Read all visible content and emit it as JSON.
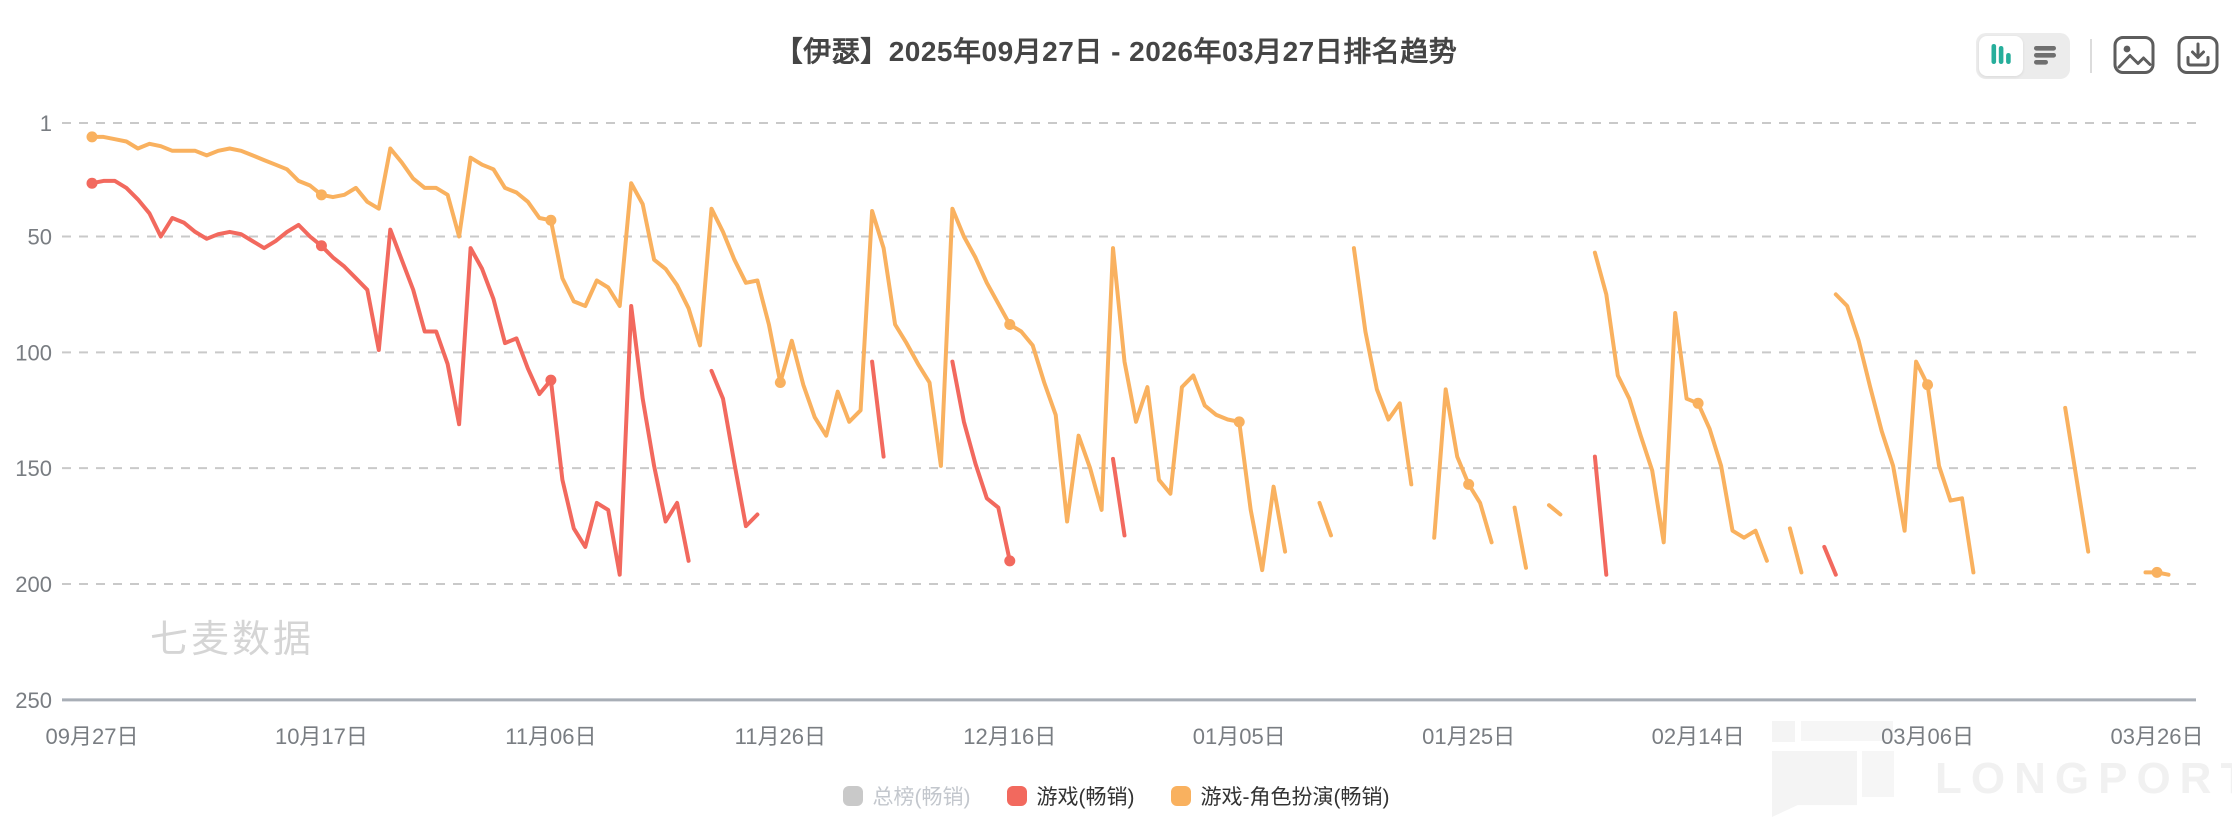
{
  "title": "【伊瑟】2025年09月27日 - 2026年03月27日排名趋势",
  "toolbar": {
    "toggle": {
      "active_view": "chart",
      "chart_icon_color": "#26ae9b",
      "list_icon_color": "#6f6f6f"
    },
    "buttons": [
      "export-image",
      "download"
    ]
  },
  "legend": {
    "items": [
      {
        "label": "总榜(畅销)",
        "color": "#c9c9c9",
        "text_color": "#c3c7cd",
        "active": false
      },
      {
        "label": "游戏(畅销)",
        "color": "#f2695e",
        "text_color": "#333333",
        "active": true
      },
      {
        "label": "游戏-角色扮演(畅销)",
        "color": "#f9b15f",
        "text_color": "#333333",
        "active": true
      }
    ]
  },
  "watermarks": {
    "qimai": "七麦数据",
    "longport": "LONGPORT"
  },
  "chart_data": {
    "type": "line",
    "title": "【伊瑟】2025年09月27日 - 2026年03月27日排名趋势",
    "y_axis": {
      "ticks": [
        1,
        50,
        100,
        150,
        200,
        250
      ],
      "inverted": true,
      "range": [
        1,
        250
      ],
      "grid": "dashed"
    },
    "x_axis": {
      "unit": "days since 2025-09-27",
      "range_days": [
        0,
        181
      ],
      "tick_days": [
        0,
        20,
        40,
        60,
        80,
        100,
        120,
        140,
        160,
        180
      ],
      "tick_labels": [
        "09月27日",
        "10月17日",
        "11月06日",
        "11月26日",
        "12月16日",
        "01月05日",
        "01月25日",
        "02月14日",
        "03月06日",
        "03月26日"
      ]
    },
    "legend_position": "bottom",
    "marker_every_days": 20,
    "series": [
      {
        "name": "总榜(畅销)",
        "color": "#c9c9c9",
        "visible": false,
        "points": []
      },
      {
        "name": "游戏(畅销)",
        "color": "#f2695e",
        "visible": true,
        "points": [
          [
            0,
            27
          ],
          [
            1,
            26
          ],
          [
            2,
            26
          ],
          [
            3,
            29
          ],
          [
            4,
            34
          ],
          [
            5,
            40
          ],
          [
            6,
            50
          ],
          [
            7,
            42
          ],
          [
            8,
            44
          ],
          [
            9,
            48
          ],
          [
            10,
            51
          ],
          [
            11,
            49
          ],
          [
            12,
            48
          ],
          [
            13,
            49
          ],
          [
            14,
            52
          ],
          [
            15,
            55
          ],
          [
            16,
            52
          ],
          [
            17,
            48
          ],
          [
            18,
            45
          ],
          [
            19,
            50
          ],
          [
            20,
            54
          ],
          [
            21,
            59
          ],
          [
            22,
            63
          ],
          [
            23,
            68
          ],
          [
            24,
            73
          ],
          [
            25,
            99
          ],
          [
            26,
            47
          ],
          [
            27,
            60
          ],
          [
            28,
            73
          ],
          [
            29,
            91
          ],
          [
            30,
            91
          ],
          [
            31,
            105
          ],
          [
            32,
            131
          ],
          [
            33,
            55
          ],
          [
            34,
            64
          ],
          [
            35,
            77
          ],
          [
            36,
            96
          ],
          [
            37,
            94
          ],
          [
            38,
            107
          ],
          [
            39,
            118
          ],
          [
            40,
            112
          ],
          [
            41,
            155
          ],
          [
            42,
            176
          ],
          [
            43,
            184
          ],
          [
            44,
            165
          ],
          [
            45,
            168
          ],
          [
            46,
            196
          ],
          [
            47,
            80
          ],
          [
            48,
            120
          ],
          [
            49,
            149
          ],
          [
            50,
            173
          ],
          [
            51,
            165
          ],
          [
            52,
            190
          ],
          null,
          [
            54,
            108
          ],
          [
            55,
            120
          ],
          [
            56,
            148
          ],
          [
            57,
            175
          ],
          [
            58,
            170
          ],
          null,
          [
            68,
            104
          ],
          [
            69,
            145
          ],
          null,
          [
            75,
            104
          ],
          [
            76,
            130
          ],
          [
            77,
            148
          ],
          [
            78,
            163
          ],
          [
            79,
            167
          ],
          [
            80,
            190
          ],
          null,
          [
            89,
            146
          ],
          [
            90,
            179
          ],
          null,
          [
            131,
            145
          ],
          [
            132,
            196
          ],
          null,
          [
            151,
            184
          ],
          [
            152,
            196
          ]
        ]
      },
      {
        "name": "游戏-角色扮演(畅销)",
        "color": "#f9b15f",
        "visible": true,
        "points": [
          [
            0,
            7
          ],
          [
            1,
            7
          ],
          [
            2,
            8
          ],
          [
            3,
            9
          ],
          [
            4,
            12
          ],
          [
            5,
            10
          ],
          [
            6,
            11
          ],
          [
            7,
            13
          ],
          [
            8,
            13
          ],
          [
            9,
            13
          ],
          [
            10,
            15
          ],
          [
            11,
            13
          ],
          [
            12,
            12
          ],
          [
            13,
            13
          ],
          [
            14,
            15
          ],
          [
            15,
            17
          ],
          [
            16,
            19
          ],
          [
            17,
            21
          ],
          [
            18,
            26
          ],
          [
            19,
            28
          ],
          [
            20,
            32
          ],
          [
            21,
            33
          ],
          [
            22,
            32
          ],
          [
            23,
            29
          ],
          [
            24,
            35
          ],
          [
            25,
            38
          ],
          [
            26,
            12
          ],
          [
            27,
            18
          ],
          [
            28,
            25
          ],
          [
            29,
            29
          ],
          [
            30,
            29
          ],
          [
            31,
            32
          ],
          [
            32,
            50
          ],
          [
            33,
            16
          ],
          [
            34,
            19
          ],
          [
            35,
            21
          ],
          [
            36,
            29
          ],
          [
            37,
            31
          ],
          [
            38,
            35
          ],
          [
            39,
            42
          ],
          [
            40,
            43
          ],
          [
            41,
            68
          ],
          [
            42,
            78
          ],
          [
            43,
            80
          ],
          [
            44,
            69
          ],
          [
            45,
            72
          ],
          [
            46,
            80
          ],
          [
            47,
            27
          ],
          [
            48,
            36
          ],
          [
            49,
            60
          ],
          [
            50,
            64
          ],
          [
            51,
            71
          ],
          [
            52,
            81
          ],
          [
            53,
            97
          ],
          [
            54,
            38
          ],
          [
            55,
            48
          ],
          [
            56,
            60
          ],
          [
            57,
            70
          ],
          [
            58,
            69
          ],
          [
            59,
            88
          ],
          [
            60,
            113
          ],
          [
            61,
            95
          ],
          [
            62,
            114
          ],
          [
            63,
            128
          ],
          [
            64,
            136
          ],
          [
            65,
            117
          ],
          [
            66,
            130
          ],
          [
            67,
            125
          ],
          [
            68,
            39
          ],
          [
            69,
            55
          ],
          [
            70,
            88
          ],
          [
            71,
            96
          ],
          [
            72,
            105
          ],
          [
            73,
            113
          ],
          [
            74,
            149
          ],
          [
            75,
            38
          ],
          [
            76,
            50
          ],
          [
            77,
            59
          ],
          [
            78,
            70
          ],
          [
            79,
            79
          ],
          [
            80,
            88
          ],
          [
            81,
            91
          ],
          [
            82,
            97
          ],
          [
            83,
            113
          ],
          [
            84,
            127
          ],
          [
            85,
            173
          ],
          [
            86,
            136
          ],
          [
            87,
            150
          ],
          [
            88,
            168
          ],
          [
            89,
            55
          ],
          [
            90,
            104
          ],
          [
            91,
            130
          ],
          [
            92,
            115
          ],
          [
            93,
            155
          ],
          [
            94,
            161
          ],
          [
            95,
            115
          ],
          [
            96,
            110
          ],
          [
            97,
            123
          ],
          [
            98,
            127
          ],
          [
            99,
            129
          ],
          [
            100,
            130
          ],
          [
            101,
            168
          ],
          [
            102,
            194
          ],
          [
            103,
            158
          ],
          [
            104,
            186
          ],
          null,
          [
            107,
            165
          ],
          [
            108,
            179
          ],
          null,
          [
            110,
            55
          ],
          [
            111,
            91
          ],
          [
            112,
            116
          ],
          [
            113,
            129
          ],
          [
            114,
            122
          ],
          [
            115,
            157
          ],
          null,
          [
            117,
            180
          ],
          [
            118,
            116
          ],
          [
            119,
            145
          ],
          [
            120,
            157
          ],
          [
            121,
            165
          ],
          [
            122,
            182
          ],
          null,
          [
            124,
            167
          ],
          [
            125,
            193
          ],
          null,
          [
            127,
            166
          ],
          [
            128,
            170
          ],
          null,
          [
            131,
            57
          ],
          [
            132,
            75
          ],
          [
            133,
            110
          ],
          [
            134,
            120
          ],
          [
            135,
            136
          ],
          [
            136,
            151
          ],
          [
            137,
            182
          ],
          [
            138,
            83
          ],
          [
            139,
            120
          ],
          [
            140,
            122
          ],
          [
            141,
            133
          ],
          [
            142,
            149
          ],
          [
            143,
            177
          ],
          [
            144,
            180
          ],
          [
            145,
            177
          ],
          [
            146,
            190
          ],
          null,
          [
            148,
            176
          ],
          [
            149,
            195
          ],
          null,
          [
            152,
            75
          ],
          [
            153,
            80
          ],
          [
            154,
            95
          ],
          [
            155,
            115
          ],
          [
            156,
            134
          ],
          [
            157,
            149
          ],
          [
            158,
            177
          ],
          [
            159,
            104
          ],
          [
            160,
            114
          ],
          [
            161,
            149
          ],
          [
            162,
            164
          ],
          [
            163,
            163
          ],
          [
            164,
            195
          ],
          null,
          [
            172,
            124
          ],
          [
            173,
            155
          ],
          [
            174,
            186
          ],
          null,
          [
            179,
            195
          ],
          [
            180,
            195
          ],
          [
            181,
            196
          ]
        ]
      }
    ]
  }
}
